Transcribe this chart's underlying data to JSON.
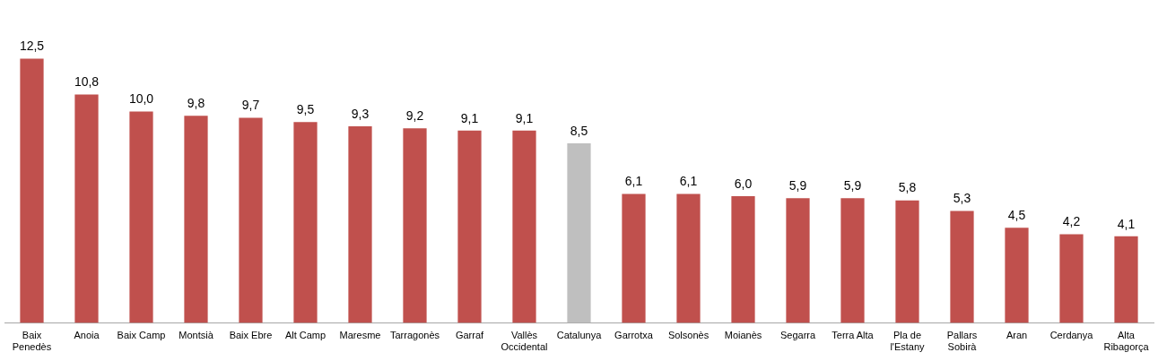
{
  "chart_data": {
    "type": "bar",
    "categories": [
      "Baix Penedès",
      "Anoia",
      "Baix Camp",
      "Montsià",
      "Baix Ebre",
      "Alt Camp",
      "Maresme",
      "Tarragonès",
      "Garraf",
      "Vallès Occidental",
      "Catalunya",
      "Garrotxa",
      "Solsonès",
      "Moianès",
      "Segarra",
      "Terra Alta",
      "Pla de l'Estany",
      "Pallars Sobirà",
      "Aran",
      "Cerdanya",
      "Alta Ribagorça"
    ],
    "values": [
      12.5,
      10.8,
      10.0,
      9.8,
      9.7,
      9.5,
      9.3,
      9.2,
      9.1,
      9.1,
      8.5,
      6.1,
      6.1,
      6.0,
      5.9,
      5.9,
      5.8,
      5.3,
      4.5,
      4.2,
      4.1
    ],
    "value_labels": [
      "12,5",
      "10,8",
      "10,0",
      "9,8",
      "9,7",
      "9,5",
      "9,3",
      "9,2",
      "9,1",
      "9,1",
      "8,5",
      "6,1",
      "6,1",
      "6,0",
      "5,9",
      "5,9",
      "5,8",
      "5,3",
      "4,5",
      "4,2",
      "4,1"
    ],
    "colors": [
      "#c0504d",
      "#c0504d",
      "#c0504d",
      "#c0504d",
      "#c0504d",
      "#c0504d",
      "#c0504d",
      "#c0504d",
      "#c0504d",
      "#c0504d",
      "#bfbfbf",
      "#c0504d",
      "#c0504d",
      "#c0504d",
      "#c0504d",
      "#c0504d",
      "#c0504d",
      "#c0504d",
      "#c0504d",
      "#c0504d",
      "#c0504d"
    ],
    "grid": false,
    "legend": false,
    "tick_labels": "x"
  }
}
